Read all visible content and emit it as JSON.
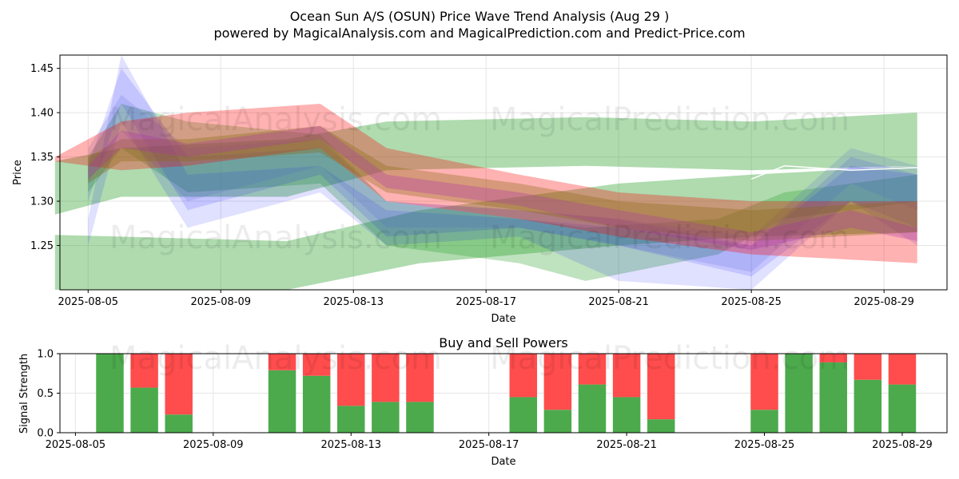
{
  "chart_data": [
    {
      "type": "area",
      "title": "Ocean Sun A/S (OSUN) Price Wave Trend Analysis (Aug 29 )",
      "subtitle": "powered by MagicalAnalysis.com and MagicalPrediction.com and Predict-Price.com",
      "xlabel": "Date",
      "ylabel": "Price",
      "xlim": [
        "2025-08-04",
        "2025-08-30"
      ],
      "ylim": [
        1.2,
        1.465
      ],
      "x_ticks": [
        "2025-08-05",
        "2025-08-09",
        "2025-08-13",
        "2025-08-17",
        "2025-08-21",
        "2025-08-25",
        "2025-08-29"
      ],
      "y_ticks": [
        1.25,
        1.3,
        1.35,
        1.4,
        1.45
      ],
      "y_tick_labels": [
        "1.25",
        "1.30",
        "1.35",
        "1.40",
        "1.45"
      ],
      "grid": true,
      "bands": [
        {
          "color": "#2ca02c",
          "opacity": 0.38,
          "x": [
            "2025-08-04",
            "2025-08-11",
            "2025-08-15",
            "2025-08-21",
            "2025-08-25",
            "2025-08-30"
          ],
          "upper": [
            1.262,
            1.255,
            1.29,
            1.32,
            1.33,
            1.34
          ],
          "lower": [
            1.18,
            1.18,
            1.23,
            1.25,
            1.26,
            1.265
          ]
        },
        {
          "color": "#2ca02c",
          "opacity": 0.38,
          "x": [
            "2025-08-04",
            "2025-08-06",
            "2025-08-11",
            "2025-08-14",
            "2025-08-20",
            "2025-08-25",
            "2025-08-30"
          ],
          "upper": [
            1.345,
            1.36,
            1.37,
            1.39,
            1.395,
            1.39,
            1.4
          ],
          "lower": [
            1.285,
            1.305,
            1.305,
            1.335,
            1.34,
            1.335,
            1.34
          ]
        },
        {
          "color": "#2ca02c",
          "opacity": 0.3,
          "x": [
            "2025-08-05",
            "2025-08-06",
            "2025-08-08",
            "2025-08-12",
            "2025-08-14",
            "2025-08-18",
            "2025-08-20",
            "2025-08-24",
            "2025-08-26",
            "2025-08-30"
          ],
          "upper": [
            1.35,
            1.41,
            1.39,
            1.375,
            1.3,
            1.28,
            1.27,
            1.28,
            1.31,
            1.33
          ],
          "lower": [
            1.31,
            1.36,
            1.31,
            1.32,
            1.25,
            1.23,
            1.21,
            1.24,
            1.28,
            1.3
          ]
        },
        {
          "color": "#0000ff",
          "opacity": 0.12,
          "x": [
            "2025-08-05",
            "2025-08-06",
            "2025-08-08",
            "2025-08-12",
            "2025-08-14",
            "2025-08-18",
            "2025-08-21",
            "2025-08-25",
            "2025-08-28",
            "2025-08-30"
          ],
          "upper": [
            1.28,
            1.47,
            1.33,
            1.34,
            1.29,
            1.28,
            1.27,
            1.25,
            1.35,
            1.33
          ],
          "lower": [
            1.25,
            1.39,
            1.27,
            1.31,
            1.25,
            1.26,
            1.21,
            1.2,
            1.3,
            1.25
          ]
        },
        {
          "color": "#0000ff",
          "opacity": 0.12,
          "x": [
            "2025-08-05",
            "2025-08-06",
            "2025-08-08",
            "2025-08-12",
            "2025-08-14",
            "2025-08-18",
            "2025-08-21",
            "2025-08-25",
            "2025-08-28",
            "2025-08-30"
          ],
          "upper": [
            1.34,
            1.45,
            1.35,
            1.36,
            1.3,
            1.29,
            1.28,
            1.25,
            1.34,
            1.33
          ],
          "lower": [
            1.3,
            1.41,
            1.29,
            1.33,
            1.26,
            1.27,
            1.25,
            1.215,
            1.3,
            1.27
          ]
        },
        {
          "color": "#5566cc",
          "opacity": 0.18,
          "x": [
            "2025-08-05",
            "2025-08-06",
            "2025-08-08",
            "2025-08-12",
            "2025-08-14",
            "2025-08-18",
            "2025-08-21",
            "2025-08-25",
            "2025-08-28",
            "2025-08-30"
          ],
          "upper": [
            1.36,
            1.42,
            1.36,
            1.37,
            1.3,
            1.29,
            1.28,
            1.26,
            1.36,
            1.34
          ],
          "lower": [
            1.32,
            1.38,
            1.3,
            1.34,
            1.27,
            1.27,
            1.25,
            1.22,
            1.32,
            1.29
          ]
        },
        {
          "color": "#ff0000",
          "opacity": 0.3,
          "x": [
            "2025-08-04",
            "2025-08-06",
            "2025-08-08",
            "2025-08-12",
            "2025-08-14",
            "2025-08-18",
            "2025-08-21",
            "2025-08-25",
            "2025-08-30"
          ],
          "upper": [
            1.35,
            1.39,
            1.4,
            1.41,
            1.36,
            1.33,
            1.31,
            1.3,
            1.3
          ],
          "lower": [
            1.345,
            1.335,
            1.34,
            1.36,
            1.3,
            1.28,
            1.26,
            1.24,
            1.23
          ]
        },
        {
          "color": "#8b6914",
          "opacity": 0.35,
          "x": [
            "2025-08-05",
            "2025-08-06",
            "2025-08-08",
            "2025-08-12",
            "2025-08-14",
            "2025-08-18",
            "2025-08-21",
            "2025-08-25",
            "2025-08-30"
          ],
          "upper": [
            1.35,
            1.37,
            1.37,
            1.385,
            1.34,
            1.32,
            1.3,
            1.29,
            1.3
          ],
          "lower": [
            1.32,
            1.345,
            1.345,
            1.355,
            1.31,
            1.29,
            1.27,
            1.255,
            1.265
          ]
        },
        {
          "color": "#aa33aa",
          "opacity": 0.3,
          "x": [
            "2025-08-05",
            "2025-08-06",
            "2025-08-08",
            "2025-08-12",
            "2025-08-14",
            "2025-08-18",
            "2025-08-21",
            "2025-08-25",
            "2025-08-28",
            "2025-08-30"
          ],
          "upper": [
            1.34,
            1.38,
            1.365,
            1.385,
            1.33,
            1.31,
            1.29,
            1.265,
            1.29,
            1.27
          ],
          "lower": [
            1.325,
            1.36,
            1.35,
            1.37,
            1.315,
            1.295,
            1.27,
            1.245,
            1.27,
            1.255
          ]
        }
      ],
      "line": {
        "color": "#ffffff",
        "x": [
          "2025-08-25",
          "2025-08-26",
          "2025-08-28",
          "2025-08-30"
        ],
        "y": [
          1.325,
          1.34,
          1.335,
          1.338
        ]
      }
    },
    {
      "type": "bar",
      "title": "Buy and Sell Powers",
      "xlabel": "Date",
      "ylabel": "Signal Strength",
      "ylim": [
        0,
        1
      ],
      "y_ticks": [
        0.0,
        0.5,
        1.0
      ],
      "y_tick_labels": [
        "0.0",
        "0.5",
        "1.0"
      ],
      "x_ticks": [
        "2025-08-05",
        "2025-08-09",
        "2025-08-13",
        "2025-08-17",
        "2025-08-21",
        "2025-08-25",
        "2025-08-29"
      ],
      "dates": [
        "2025-08-06",
        "2025-08-07",
        "2025-08-08",
        "2025-08-11",
        "2025-08-12",
        "2025-08-13",
        "2025-08-14",
        "2025-08-15",
        "2025-08-18",
        "2025-08-19",
        "2025-08-20",
        "2025-08-21",
        "2025-08-22",
        "2025-08-25",
        "2025-08-26",
        "2025-08-27",
        "2025-08-28",
        "2025-08-29"
      ],
      "series": [
        {
          "name": "Buy",
          "color": "#4caa4c",
          "values": [
            1.0,
            0.57,
            0.23,
            0.79,
            0.72,
            0.34,
            0.39,
            0.39,
            0.45,
            0.29,
            0.61,
            0.45,
            0.17,
            0.29,
            1.0,
            0.89,
            0.67,
            0.61
          ]
        },
        {
          "name": "Sell",
          "color": "#ff4c4c",
          "values": [
            0.0,
            0.43,
            0.77,
            0.21,
            0.28,
            0.66,
            0.61,
            0.61,
            0.55,
            0.71,
            0.39,
            0.55,
            0.83,
            0.71,
            0.0,
            0.11,
            0.33,
            0.39
          ]
        }
      ]
    }
  ],
  "watermarks": {
    "top_left_1": "MagicalAnalysis.com",
    "top_right_1": "MagicalPrediction.com",
    "top_left_2": "MagicalAnalysis.com",
    "top_right_2": "MagicalPrediction.com",
    "bottom_left": "MagicalAnalysis.com",
    "bottom_right": "MagicalPrediction.com"
  }
}
